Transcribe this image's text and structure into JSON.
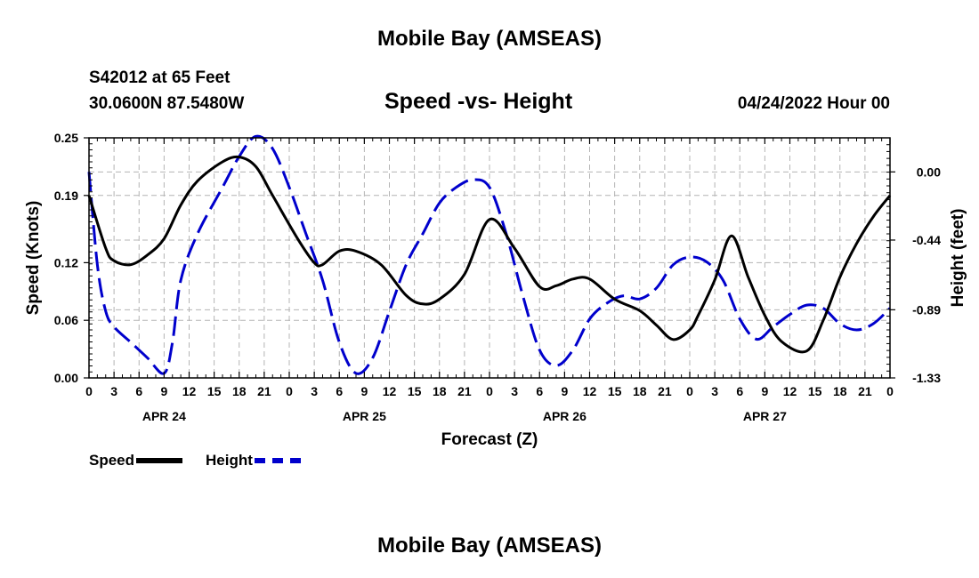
{
  "header": {
    "title_top": "Mobile Bay (AMSEAS)",
    "station": "S42012 at 65 Feet",
    "coords": "30.0600N  87.5480W",
    "subtitle": "Speed -vs- Height",
    "date": "04/24/2022 Hour 00",
    "title_bottom": "Mobile Bay (AMSEAS)"
  },
  "legend": {
    "speed_label": "Speed",
    "height_label": "Height"
  },
  "colors": {
    "speed": "#000000",
    "height": "#0000cc",
    "grid": "#b4b4b4"
  },
  "chart_data": {
    "type": "line",
    "xlabel": "Forecast (Z)",
    "ylabel_left": "Speed (Knots)",
    "ylabel_right": "Height (feet)",
    "x_range_hours": [
      0,
      96
    ],
    "x_tick_labels": [
      "0",
      "3",
      "6",
      "9",
      "12",
      "15",
      "18",
      "21",
      "0",
      "3",
      "6",
      "9",
      "12",
      "15",
      "18",
      "21",
      "0",
      "3",
      "6",
      "9",
      "12",
      "15",
      "18",
      "21",
      "0",
      "3",
      "6",
      "9",
      "12",
      "15",
      "18",
      "21",
      "0"
    ],
    "day_labels": [
      {
        "label": "APR 24",
        "hour": 9
      },
      {
        "label": "APR 25",
        "hour": 33
      },
      {
        "label": "APR 26",
        "hour": 57
      },
      {
        "label": "APR 27",
        "hour": 81
      }
    ],
    "y_left": {
      "ticks": [
        0.0,
        0.06,
        0.12,
        0.19,
        0.25
      ],
      "tick_labels": [
        "0.00",
        "0.06",
        "0.12",
        "0.19",
        "0.25"
      ],
      "range": [
        0,
        0.25
      ]
    },
    "y_right": {
      "ticks": [
        0.0,
        -0.44,
        -0.89,
        -1.33
      ],
      "tick_labels": [
        "0.00",
        "-0.44",
        "-0.89",
        "-1.33"
      ],
      "range": [
        -1.33,
        0.22
      ]
    },
    "series": [
      {
        "name": "Speed",
        "axis": "left",
        "x": [
          0,
          2,
          3,
          5,
          7,
          9,
          11,
          13,
          16,
          18,
          20,
          22,
          25,
          27,
          28,
          30,
          32,
          35,
          38,
          40,
          42,
          45,
          48,
          51,
          54,
          56,
          58,
          60,
          63,
          66,
          68,
          70,
          72,
          73,
          75,
          77,
          79,
          81,
          83,
          86,
          88,
          90,
          92,
          94,
          96
        ],
        "values": [
          0.19,
          0.135,
          0.122,
          0.118,
          0.128,
          0.145,
          0.18,
          0.205,
          0.225,
          0.23,
          0.22,
          0.19,
          0.145,
          0.12,
          0.118,
          0.132,
          0.132,
          0.118,
          0.086,
          0.077,
          0.082,
          0.108,
          0.165,
          0.135,
          0.095,
          0.096,
          0.103,
          0.103,
          0.082,
          0.07,
          0.055,
          0.04,
          0.05,
          0.065,
          0.102,
          0.148,
          0.105,
          0.065,
          0.038,
          0.028,
          0.06,
          0.105,
          0.14,
          0.168,
          0.19
        ]
      },
      {
        "name": "Height",
        "axis": "right",
        "x": [
          0,
          1,
          2,
          3,
          5,
          7,
          9,
          10,
          11,
          13,
          16,
          18,
          20,
          22,
          24,
          26,
          28,
          30,
          32,
          34,
          36,
          38,
          40,
          42,
          44,
          46,
          48,
          50,
          52,
          54,
          56,
          58,
          60,
          62,
          64,
          66,
          68,
          70,
          72,
          74,
          76,
          78,
          80,
          82,
          84,
          86,
          88,
          90,
          92,
          94,
          96
        ],
        "values": [
          0.0,
          -0.6,
          -0.9,
          -1.0,
          -1.1,
          -1.2,
          -1.3,
          -1.1,
          -0.7,
          -0.4,
          -0.1,
          0.1,
          0.23,
          0.15,
          -0.1,
          -0.4,
          -0.7,
          -1.1,
          -1.3,
          -1.2,
          -0.9,
          -0.6,
          -0.4,
          -0.2,
          -0.1,
          -0.05,
          -0.1,
          -0.4,
          -0.8,
          -1.15,
          -1.25,
          -1.15,
          -0.95,
          -0.85,
          -0.8,
          -0.82,
          -0.75,
          -0.6,
          -0.55,
          -0.58,
          -0.7,
          -0.95,
          -1.08,
          -1.0,
          -0.92,
          -0.86,
          -0.88,
          -0.98,
          -1.02,
          -0.98,
          -0.88
        ]
      }
    ]
  }
}
